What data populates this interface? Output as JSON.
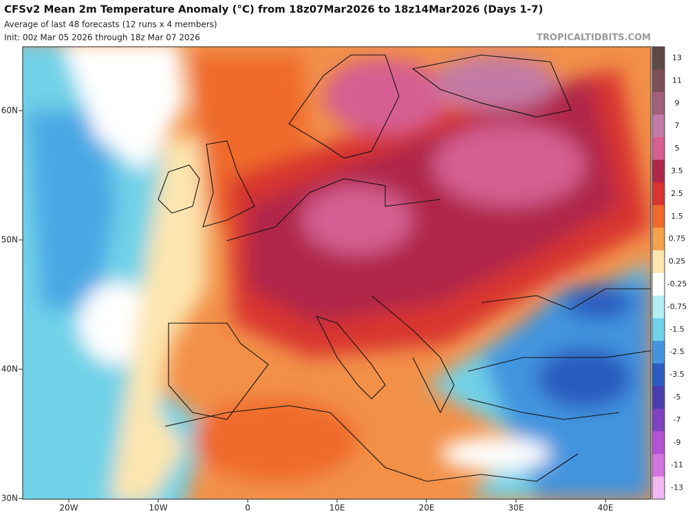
{
  "header": {
    "title": "CFSv2 Mean 2m Temperature Anomaly (°C) from 18z07Mar2026 to 18z14Mar2026 (Days 1-7)",
    "subtitle": "Average of last 48 forecasts (12 runs x 4 members)",
    "init": "Init: 00z Mar 05 2026 through 18z Mar 07 2026",
    "source": "TROPICALTIDBITS.COM"
  },
  "map": {
    "lat_labels": [
      "60N",
      "50N",
      "40N",
      "30N"
    ],
    "lon_labels": [
      "20W",
      "10W",
      "0",
      "10E",
      "20E",
      "30E",
      "40E"
    ]
  },
  "colorbar": {
    "labels": [
      "13",
      "11",
      "9",
      "7",
      "5",
      "3.5",
      "2.5",
      "1.5",
      "0.75",
      "0.25",
      "-0.25",
      "-0.75",
      "-1.5",
      "-2.5",
      "-3.5",
      "-5",
      "-7",
      "-9",
      "-11",
      "-13"
    ],
    "colors": [
      "#5e4848",
      "#7c5058",
      "#a0607a",
      "#c27aa6",
      "#d55e92",
      "#b02848",
      "#d8352e",
      "#ee6a2c",
      "#f5a24e",
      "#fde5ae",
      "#ffffff",
      "#b4eef2",
      "#70d2e8",
      "#4294de",
      "#2a5cc0",
      "#4a3eae",
      "#7e42c0",
      "#b052d2",
      "#d474e2",
      "#f2b6f2"
    ]
  }
}
